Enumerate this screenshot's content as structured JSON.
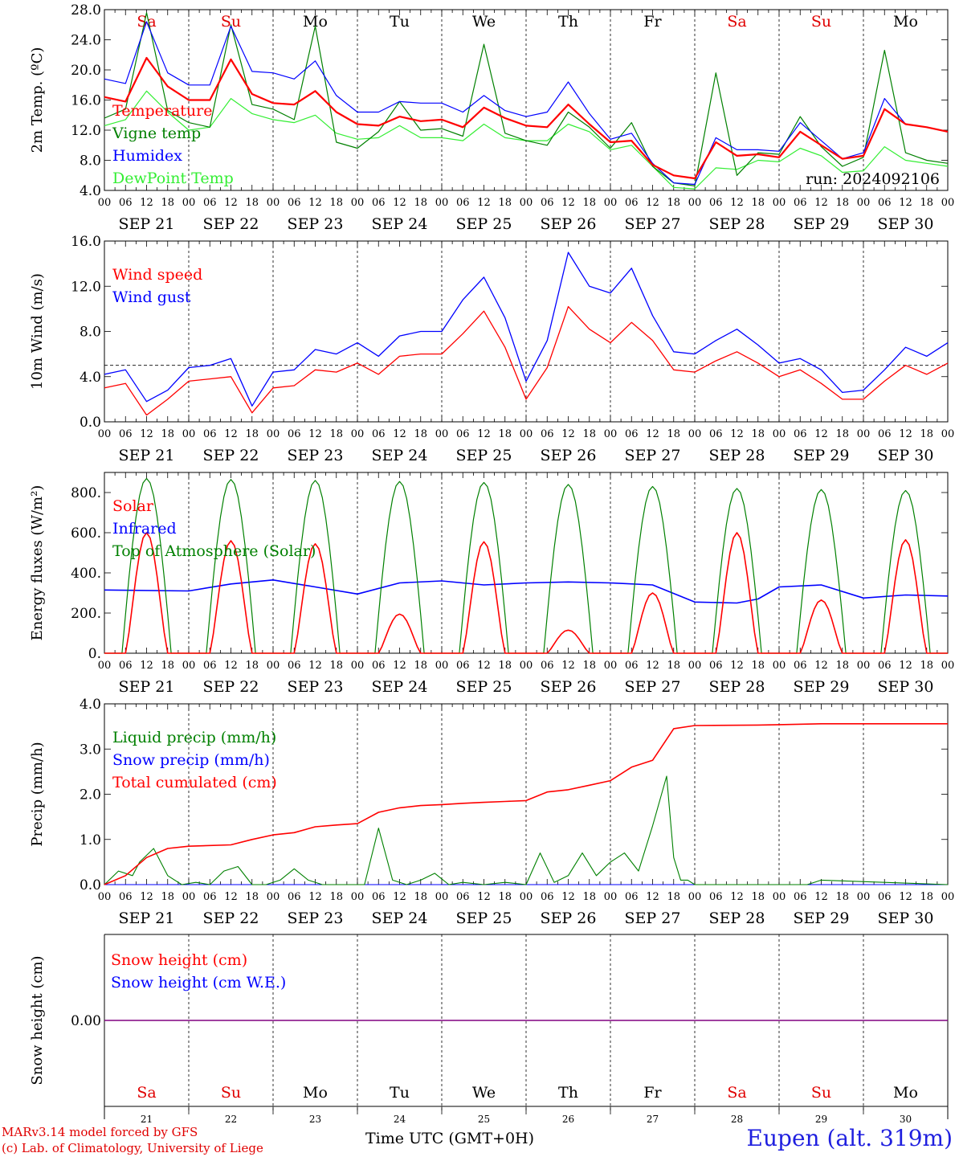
{
  "days": {
    "labels": [
      "SEP 21",
      "SEP 22",
      "SEP 23",
      "SEP 24",
      "SEP 25",
      "SEP 26",
      "SEP 27",
      "SEP 28",
      "SEP 29",
      "SEP 30"
    ],
    "weekdays": [
      "Sa",
      "Su",
      "Mo",
      "Tu",
      "We",
      "Th",
      "Fr",
      "Sa",
      "Su",
      "Mo"
    ],
    "weekday_colors": [
      "#e00000",
      "#e00000",
      "#000000",
      "#000000",
      "#000000",
      "#000000",
      "#000000",
      "#e00000",
      "#e00000",
      "#000000"
    ],
    "numbers": [
      "21",
      "22",
      "23",
      "24",
      "25",
      "26",
      "27",
      "28",
      "29",
      "30"
    ],
    "hour_ticks": [
      "00",
      "06",
      "12",
      "18"
    ],
    "end_tick": "00"
  },
  "footer": {
    "credit_line1": "MARv3.14 model forced by GFS",
    "credit_line2": "(c) Lab. of Climatology, University of Liege",
    "x_title": "Time UTC (GMT+0H)",
    "station": "Eupen (alt. 319m)"
  },
  "colors": {
    "red": "#ff0000",
    "green": "#008000",
    "blue": "#0000ff",
    "lightgreen": "#33ee33",
    "purple": "#800080"
  },
  "chart_data": [
    {
      "id": "temperature",
      "type": "line",
      "ylabel": "2m Temp. (ºC)",
      "ylim": [
        4,
        28
      ],
      "yticks": [
        "4.0",
        "8.0",
        "12.0",
        "16.0",
        "20.0",
        "24.0",
        "28.0"
      ],
      "annotation": "run: 2024092106",
      "x": [
        0,
        6,
        12,
        18,
        24,
        30,
        36,
        42,
        48,
        54,
        60,
        66,
        72,
        78,
        84,
        90,
        96,
        102,
        108,
        114,
        120,
        126,
        132,
        138,
        144,
        150,
        156,
        162,
        168,
        174,
        180,
        186,
        192,
        198,
        204,
        210,
        216,
        222,
        228,
        234,
        240
      ],
      "series": [
        {
          "name": "Temperature",
          "color": "red",
          "values": [
            16.4,
            15.8,
            21.6,
            17.8,
            16.0,
            16.0,
            21.4,
            16.8,
            15.6,
            15.4,
            17.2,
            14.4,
            12.8,
            12.6,
            13.8,
            13.2,
            13.4,
            12.4,
            15.0,
            13.6,
            12.6,
            12.4,
            15.4,
            12.8,
            10.4,
            10.6,
            7.4,
            6.0,
            5.6,
            10.4,
            8.6,
            8.8,
            8.4,
            11.8,
            10.0,
            8.2,
            8.6,
            14.8,
            12.8,
            12.4,
            11.8
          ]
        },
        {
          "name": "Vigne temp",
          "color": "green",
          "values": [
            13.6,
            14.8,
            27.6,
            14.6,
            13.0,
            12.4,
            26.0,
            15.4,
            14.8,
            13.4,
            25.8,
            10.4,
            9.6,
            11.8,
            15.8,
            12.0,
            12.2,
            11.2,
            23.4,
            11.6,
            10.6,
            10.0,
            14.4,
            12.4,
            9.6,
            13.0,
            7.2,
            5.0,
            4.6,
            19.6,
            6.0,
            9.0,
            8.8,
            13.8,
            9.8,
            7.2,
            8.4,
            22.6,
            9.0,
            8.0,
            7.6
          ]
        },
        {
          "name": "Humidex",
          "color": "blue",
          "values": [
            18.8,
            18.2,
            26.4,
            19.6,
            18.0,
            18.0,
            25.8,
            19.8,
            19.6,
            18.8,
            21.2,
            16.6,
            14.4,
            14.4,
            15.8,
            15.6,
            15.6,
            14.4,
            16.6,
            14.6,
            13.8,
            14.4,
            18.4,
            14.2,
            10.8,
            11.6,
            7.6,
            5.0,
            4.8,
            11.0,
            9.4,
            9.4,
            9.2,
            13.0,
            10.6,
            8.2,
            9.0,
            16.2,
            12.8,
            12.4,
            11.8
          ]
        },
        {
          "name": "DewPoint Temp",
          "color": "lightgreen",
          "values": [
            12.6,
            13.4,
            17.2,
            14.4,
            12.0,
            12.4,
            16.2,
            14.2,
            13.4,
            13.0,
            14.0,
            11.6,
            10.8,
            11.0,
            12.6,
            11.0,
            11.0,
            10.6,
            12.8,
            11.0,
            10.6,
            10.6,
            12.8,
            11.8,
            9.4,
            10.0,
            7.2,
            4.4,
            4.2,
            7.0,
            6.8,
            8.0,
            7.8,
            9.6,
            8.6,
            6.4,
            6.6,
            9.8,
            8.0,
            7.6,
            7.2
          ]
        }
      ]
    },
    {
      "id": "wind",
      "type": "line",
      "ylabel": "10m Wind (m/s)",
      "ylim": [
        0,
        16
      ],
      "yticks": [
        "0.0",
        "4.0",
        "8.0",
        "12.0",
        "16.0"
      ],
      "reference_line": 5,
      "x": [
        0,
        6,
        12,
        18,
        24,
        30,
        36,
        42,
        48,
        54,
        60,
        66,
        72,
        78,
        84,
        90,
        96,
        102,
        108,
        114,
        120,
        126,
        132,
        138,
        144,
        150,
        156,
        162,
        168,
        174,
        180,
        186,
        192,
        198,
        204,
        210,
        216,
        222,
        228,
        234,
        240
      ],
      "series": [
        {
          "name": "Wind speed",
          "color": "red",
          "values": [
            3.0,
            3.4,
            0.6,
            2.0,
            3.6,
            3.8,
            4.0,
            0.8,
            3.0,
            3.2,
            4.6,
            4.4,
            5.2,
            4.2,
            5.8,
            6.0,
            6.0,
            7.8,
            9.8,
            6.6,
            2.0,
            4.8,
            10.2,
            8.2,
            7.0,
            8.8,
            7.2,
            4.6,
            4.4,
            5.4,
            6.2,
            5.2,
            4.0,
            4.6,
            3.4,
            2.0,
            2.0,
            3.6,
            5.0,
            4.2,
            5.2
          ]
        },
        {
          "name": "Wind gust",
          "color": "blue",
          "values": [
            4.2,
            4.6,
            1.8,
            2.8,
            4.8,
            5.0,
            5.6,
            1.4,
            4.4,
            4.6,
            6.4,
            6.0,
            7.0,
            5.8,
            7.6,
            8.0,
            8.0,
            10.8,
            12.8,
            9.2,
            3.6,
            7.2,
            15.0,
            12.0,
            11.4,
            13.6,
            9.4,
            6.2,
            6.0,
            7.2,
            8.2,
            6.8,
            5.2,
            5.6,
            4.6,
            2.6,
            2.8,
            4.6,
            6.6,
            5.8,
            7.0
          ]
        }
      ]
    },
    {
      "id": "energy",
      "type": "line",
      "ylabel": "Energy fluxes (W/m²)",
      "ylim": [
        0,
        900
      ],
      "yticks": [
        "0.",
        "200.",
        "400.",
        "600.",
        "800."
      ],
      "daily_toa_peak": [
        870,
        865,
        860,
        855,
        850,
        840,
        830,
        820,
        815,
        810
      ],
      "daily_solar_peak": [
        600,
        560,
        545,
        195,
        555,
        115,
        300,
        600,
        265,
        565
      ],
      "series": [
        {
          "name": "Solar",
          "color": "red"
        },
        {
          "name": "Infrared",
          "color": "blue",
          "x": [
            0,
            24,
            36,
            48,
            60,
            72,
            84,
            96,
            108,
            120,
            132,
            144,
            156,
            168,
            180,
            186,
            192,
            204,
            216,
            228,
            240
          ],
          "values": [
            315,
            310,
            345,
            365,
            330,
            295,
            350,
            360,
            340,
            350,
            355,
            350,
            340,
            255,
            250,
            270,
            330,
            340,
            275,
            290,
            285
          ]
        },
        {
          "name": "Top of Atmosphere (Solar)",
          "color": "green"
        }
      ]
    },
    {
      "id": "precip",
      "type": "line",
      "ylabel": "Precip (mm/h)",
      "ylim": [
        0,
        4
      ],
      "yticks": [
        "0.0",
        "1.0",
        "2.0",
        "3.0",
        "4.0"
      ],
      "series": [
        {
          "name": "Liquid precip (mm/h)",
          "color": "green",
          "x": [
            0,
            4,
            8,
            10,
            14,
            18,
            22,
            26,
            30,
            34,
            38,
            42,
            46,
            50,
            54,
            58,
            62,
            66,
            70,
            74,
            78,
            82,
            86,
            90,
            94,
            98,
            102,
            108,
            114,
            120,
            124,
            128,
            132,
            136,
            140,
            144,
            148,
            152,
            156,
            160,
            162,
            164,
            166,
            168,
            172,
            200,
            204,
            240
          ],
          "values": [
            0,
            0.3,
            0.2,
            0.5,
            0.8,
            0.2,
            0,
            0.05,
            0,
            0.3,
            0.4,
            0,
            0,
            0.1,
            0.35,
            0.1,
            0,
            0,
            0,
            0,
            1.25,
            0.1,
            0,
            0.1,
            0.25,
            0,
            0.05,
            0,
            0.05,
            0,
            0.7,
            0.05,
            0.2,
            0.7,
            0.2,
            0.5,
            0.7,
            0.3,
            1.3,
            2.4,
            0.6,
            0.1,
            0.1,
            0,
            0,
            0,
            0.1,
            0
          ]
        },
        {
          "name": "Snow precip (mm/h)",
          "color": "blue",
          "x": [
            0,
            240
          ],
          "values": [
            0,
            0
          ]
        },
        {
          "name": "Total cumulated (cm)",
          "color": "red",
          "x": [
            0,
            6,
            12,
            18,
            24,
            36,
            42,
            48,
            54,
            60,
            66,
            72,
            78,
            84,
            90,
            96,
            102,
            108,
            114,
            120,
            126,
            132,
            138,
            144,
            150,
            156,
            162,
            168,
            186,
            192,
            204,
            240
          ],
          "values": [
            0,
            0.2,
            0.6,
            0.8,
            0.85,
            0.88,
            1.0,
            1.1,
            1.15,
            1.28,
            1.32,
            1.35,
            1.6,
            1.7,
            1.75,
            1.77,
            1.8,
            1.82,
            1.84,
            1.86,
            2.05,
            2.1,
            2.2,
            2.3,
            2.6,
            2.75,
            3.45,
            3.52,
            3.53,
            3.54,
            3.56,
            3.56
          ]
        }
      ]
    },
    {
      "id": "snow",
      "type": "line",
      "ylabel": "Snow height (cm)",
      "ylim": [
        -1,
        1
      ],
      "yticks": [
        "0.00"
      ],
      "series": [
        {
          "name": "Snow height (cm)",
          "color": "red",
          "x": [
            0,
            240
          ],
          "values": [
            0,
            0
          ]
        },
        {
          "name": "Snow height (cm W.E.)",
          "color": "blue",
          "x": [
            0,
            240
          ],
          "values": [
            0,
            0
          ]
        }
      ]
    }
  ]
}
